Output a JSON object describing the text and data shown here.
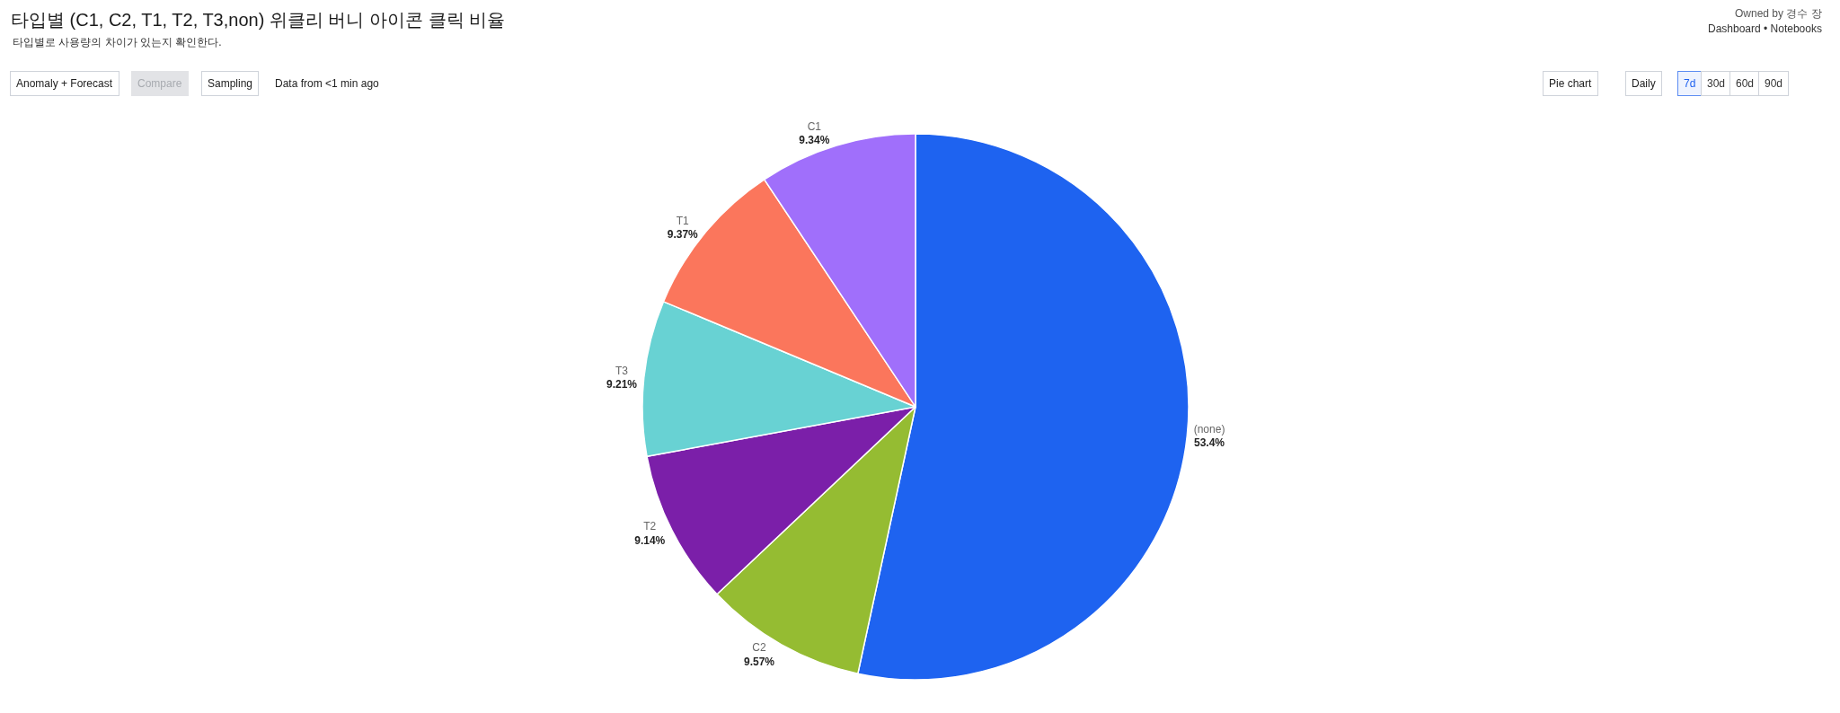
{
  "chart_data": {
    "type": "pie",
    "title": "타입별 (C1, C2, T1, T2, T3,non) 위클리 버니 아이콘 클릭 비율",
    "subtitle": "타입별로 사용량의 차이가 있는지 확인한다.",
    "categories": [
      "(none)",
      "C2",
      "T2",
      "T3",
      "T1",
      "C1"
    ],
    "values": [
      53.4,
      9.57,
      9.14,
      9.21,
      9.37,
      9.34
    ],
    "value_labels": [
      "53.4%",
      "9.57%",
      "9.14%",
      "9.21%",
      "9.37%",
      "9.34%"
    ],
    "colors": [
      "#1e63f0",
      "#95bc32",
      "#7b1fa9",
      "#68d2d3",
      "#fb765c",
      "#a06ffb"
    ],
    "annotations": [
      "Owned by 경수 장",
      "Dashboard • Notebooks",
      "Anomaly + Forecast",
      "Compare",
      "Sampling",
      "Data from <1 min ago",
      "Pie chart",
      "Daily",
      "7d",
      "30d",
      "60d",
      "90d"
    ]
  }
}
